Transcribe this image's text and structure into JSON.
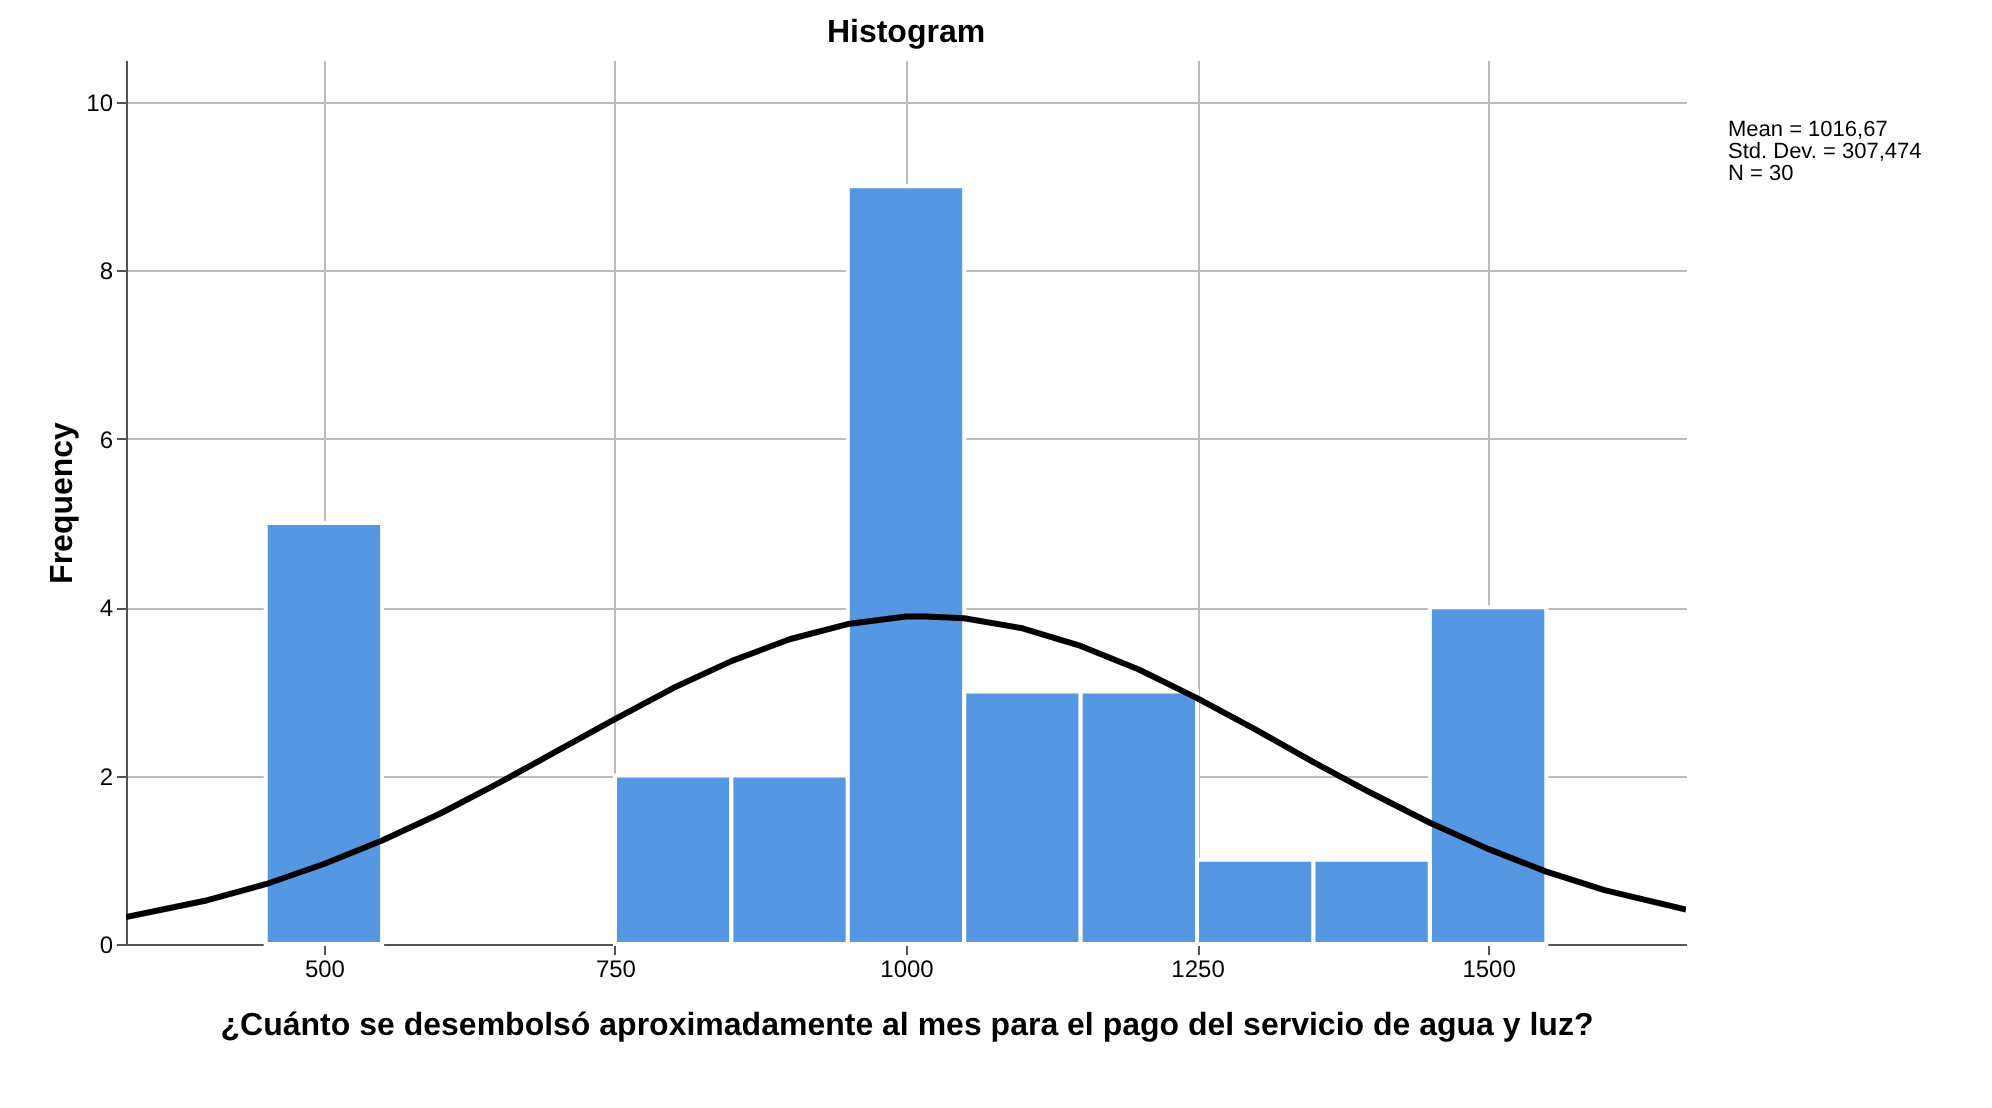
{
  "chart_data": {
    "type": "histogram",
    "title": "Histogram",
    "xlabel": "¿Cuánto se desembolsó aproximadamente al mes para el pago del servicio de agua y luz?",
    "ylabel": "Frequency",
    "bins": [
      450,
      550,
      650,
      750,
      850,
      950,
      1050,
      1150,
      1250,
      1350,
      1450,
      1550
    ],
    "values": [
      5,
      0,
      0,
      2,
      2,
      9,
      3,
      3,
      1,
      1,
      4
    ],
    "color": "#5597e3",
    "series": [
      {
        "type": "line",
        "color": "#000000",
        "x": [
          330,
          400,
          450,
          500,
          550,
          600,
          650,
          700,
          750,
          800,
          850,
          900,
          950,
          1000,
          1017,
          1050,
          1100,
          1150,
          1200,
          1250,
          1300,
          1350,
          1400,
          1450,
          1500,
          1550,
          1600,
          1670
        ],
        "values": [
          0.32,
          0.52,
          0.71,
          0.95,
          1.23,
          1.55,
          1.91,
          2.29,
          2.67,
          3.04,
          3.36,
          3.62,
          3.8,
          3.89,
          3.89,
          3.87,
          3.75,
          3.54,
          3.26,
          2.92,
          2.55,
          2.16,
          1.79,
          1.44,
          1.13,
          0.86,
          0.64,
          0.41
        ]
      }
    ],
    "xlim": [
      330,
      1670
    ],
    "xticks": [
      500,
      750,
      1000,
      1250,
      1500
    ],
    "ylim": [
      0,
      10.5
    ],
    "yticks": [
      0,
      2,
      4,
      6,
      8,
      10
    ],
    "grid": true,
    "annotations": [
      "Mean = 1016,67",
      "Std. Dev. = 307,474",
      "N = 30"
    ]
  }
}
